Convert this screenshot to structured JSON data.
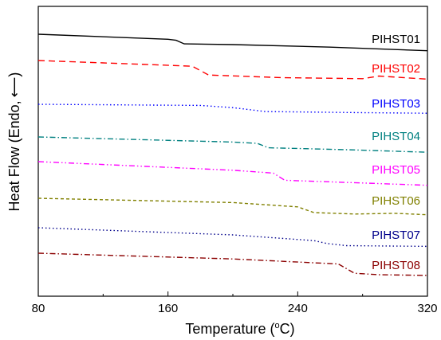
{
  "chart_data": {
    "type": "line",
    "title": "",
    "xlabel_main": "Temperature (",
    "xlabel_sup": "o",
    "xlabel_unit": "C)",
    "ylabel": "Heat Flow (Endo,",
    "ylabel_arrow": "⟵",
    "xlim": [
      80,
      320
    ],
    "x_ticks": [
      80,
      160,
      240,
      320
    ],
    "y_ticks_labeled": false,
    "grid": false,
    "legend": "inline labels at right end of each curve",
    "series": [
      {
        "name": "PIHST01",
        "color": "#000000",
        "dash": "solid",
        "points": [
          [
            80,
            0.0
          ],
          [
            160,
            -0.7
          ],
          [
            165,
            -0.85
          ],
          [
            170,
            -1.35
          ],
          [
            200,
            -1.45
          ],
          [
            260,
            -1.8
          ],
          [
            320,
            -2.3
          ]
        ]
      },
      {
        "name": "PIHST02",
        "color": "#ff0000",
        "dash": "dashed",
        "points": [
          [
            80,
            0.0
          ],
          [
            150,
            -0.4
          ],
          [
            175,
            -0.55
          ],
          [
            185,
            -1.4
          ],
          [
            230,
            -1.65
          ],
          [
            280,
            -1.75
          ],
          [
            290,
            -1.5
          ],
          [
            320,
            -1.8
          ]
        ]
      },
      {
        "name": "PIHST03",
        "color": "#0000ff",
        "dash": "dotted",
        "points": [
          [
            80,
            0.0
          ],
          [
            180,
            -0.2
          ],
          [
            200,
            -0.6
          ],
          [
            220,
            -1.3
          ],
          [
            280,
            -1.5
          ],
          [
            320,
            -1.6
          ]
        ]
      },
      {
        "name": "PIHST04",
        "color": "#008080",
        "dash": "dashdot",
        "points": [
          [
            80,
            0.0
          ],
          [
            200,
            -0.8
          ],
          [
            215,
            -1.0
          ],
          [
            222,
            -1.7
          ],
          [
            270,
            -2.0
          ],
          [
            320,
            -2.4
          ]
        ]
      },
      {
        "name": "PIHST05",
        "color": "#ff00ff",
        "dash": "dashdotdot",
        "points": [
          [
            80,
            0.0
          ],
          [
            200,
            -1.2
          ],
          [
            225,
            -1.6
          ],
          [
            232,
            -2.6
          ],
          [
            270,
            -2.9
          ],
          [
            320,
            -3.3
          ]
        ]
      },
      {
        "name": "PIHST06",
        "color": "#808000",
        "dash": "shortdash",
        "points": [
          [
            80,
            0.0
          ],
          [
            200,
            -0.6
          ],
          [
            240,
            -1.2
          ],
          [
            250,
            -2.0
          ],
          [
            275,
            -2.2
          ],
          [
            300,
            -2.1
          ],
          [
            320,
            -2.3
          ]
        ]
      },
      {
        "name": "PIHST07",
        "color": "#00008b",
        "dash": "dotted",
        "points": [
          [
            80,
            0.0
          ],
          [
            200,
            -1.0
          ],
          [
            250,
            -1.8
          ],
          [
            258,
            -2.2
          ],
          [
            270,
            -2.5
          ],
          [
            320,
            -2.6
          ]
        ]
      },
      {
        "name": "PIHST08",
        "color": "#8b0000",
        "dash": "dashdot",
        "points": [
          [
            80,
            0.0
          ],
          [
            200,
            -0.8
          ],
          [
            265,
            -1.5
          ],
          [
            275,
            -2.8
          ],
          [
            290,
            -3.0
          ],
          [
            320,
            -3.1
          ]
        ]
      }
    ]
  }
}
